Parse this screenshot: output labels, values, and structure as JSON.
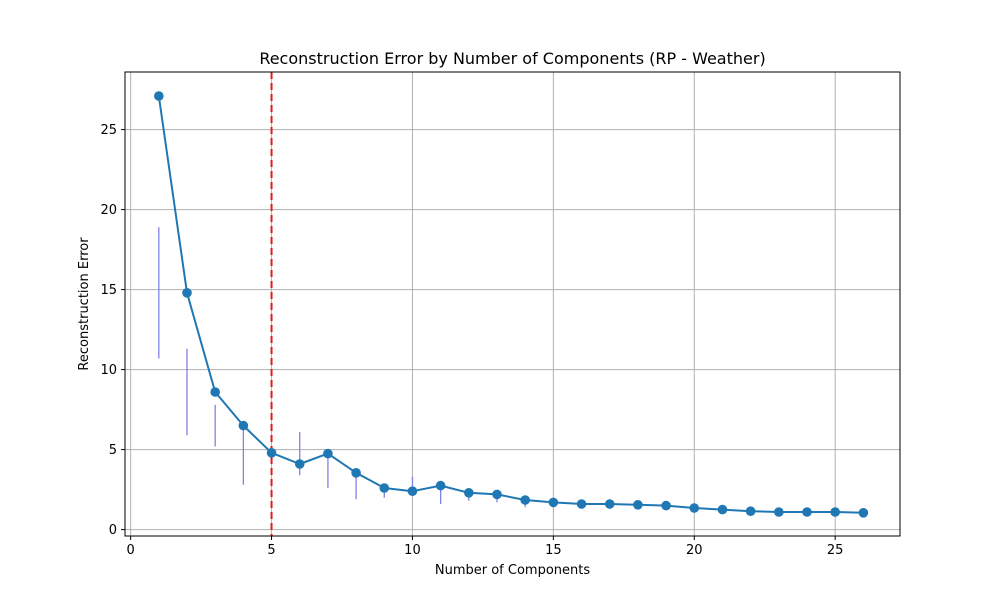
{
  "chart_data": {
    "type": "line",
    "title": "Reconstruction Error by Number of Components (RP - Weather)",
    "xlabel": "Number of Components",
    "ylabel": "Reconstruction Error",
    "xlim": [
      -0.2,
      27.3
    ],
    "ylim": [
      -0.4,
      28.6
    ],
    "xticks": [
      0,
      5,
      10,
      15,
      20,
      25
    ],
    "yticks": [
      0,
      5,
      10,
      15,
      20,
      25
    ],
    "grid": true,
    "x": [
      1,
      2,
      3,
      4,
      5,
      6,
      7,
      8,
      9,
      10,
      11,
      12,
      13,
      14,
      15,
      16,
      17,
      18,
      19,
      20,
      21,
      22,
      23,
      24,
      25,
      26
    ],
    "series": [
      {
        "values": [
          27.1,
          14.8,
          8.6,
          6.5,
          4.8,
          4.1,
          4.75,
          3.55,
          2.6,
          2.4,
          2.75,
          2.3,
          2.2,
          1.85,
          1.7,
          1.6,
          1.6,
          1.55,
          1.5,
          1.35,
          1.25,
          1.15,
          1.1,
          1.1,
          1.1,
          1.05
        ],
        "error_low": [
          10.7,
          5.9,
          5.2,
          2.8,
          4.8,
          3.4,
          2.6,
          1.9,
          2.0,
          2.4,
          1.6,
          1.8,
          1.7,
          1.4,
          1.7,
          1.6,
          1.6,
          1.55,
          1.2,
          1.35,
          1.25,
          1.15,
          1.1,
          1.1,
          1.1,
          1.05
        ],
        "error_high": [
          18.9,
          11.3,
          7.8,
          6.5,
          4.8,
          6.1,
          4.75,
          3.55,
          2.6,
          3.3,
          2.75,
          2.3,
          2.2,
          1.85,
          1.7,
          1.6,
          1.6,
          1.55,
          1.5,
          1.35,
          1.25,
          1.15,
          1.1,
          1.1,
          1.1,
          1.05
        ],
        "color": "#1f77b4",
        "error_color": "#8080e6"
      }
    ],
    "annotations": [
      {
        "type": "vline",
        "x": 5,
        "color": "#e31a1c",
        "style": "dashed"
      }
    ]
  }
}
